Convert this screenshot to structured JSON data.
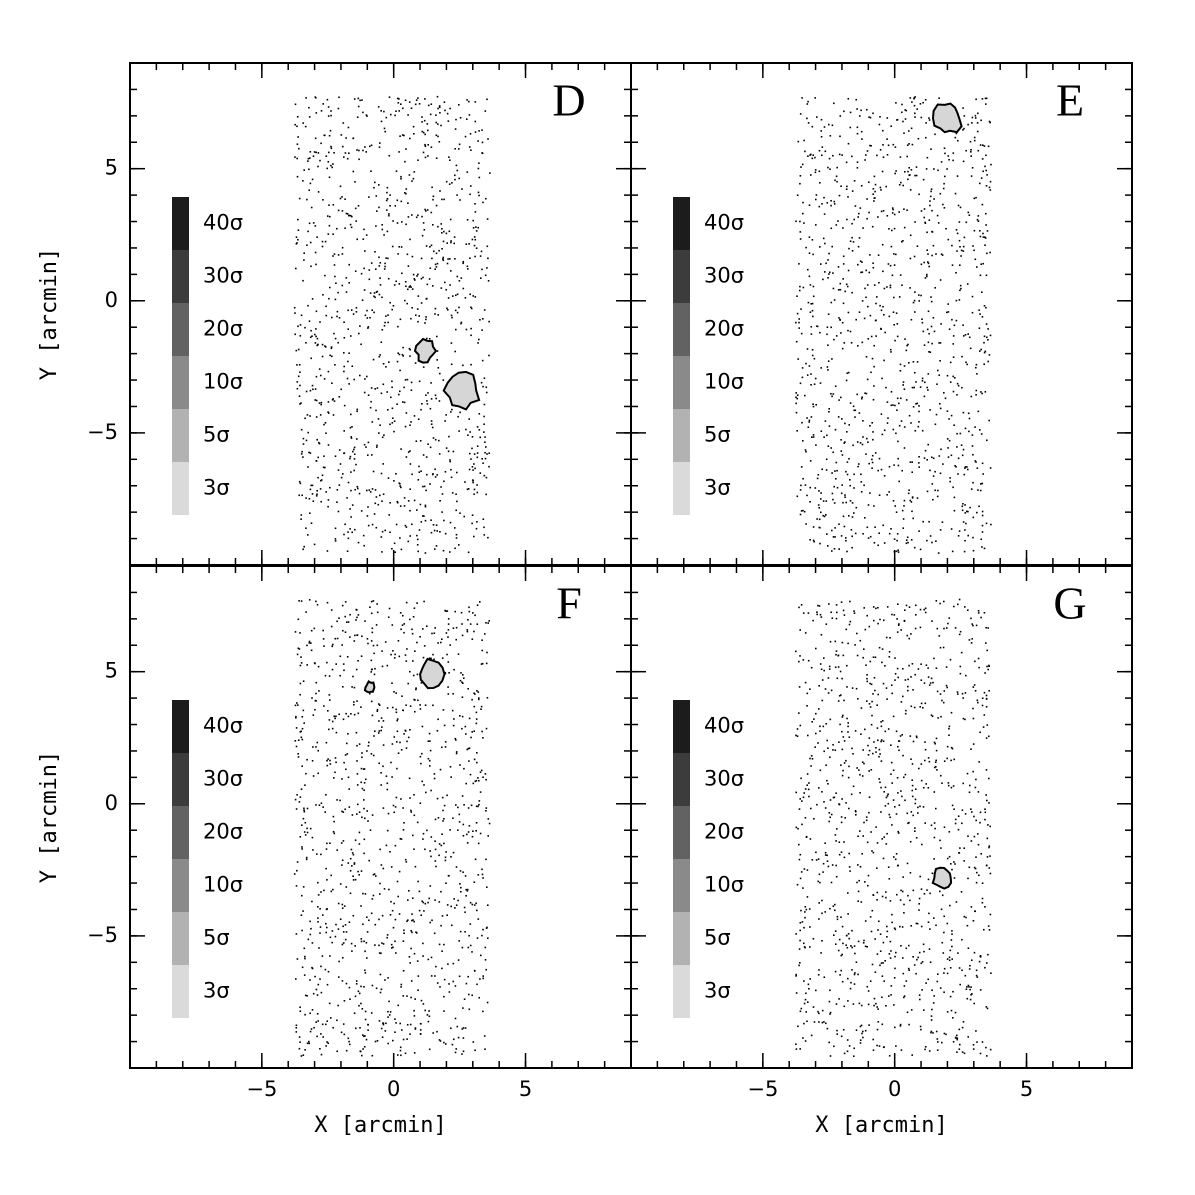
{
  "chart_data": [
    {
      "type": "contour",
      "label": "D",
      "xlim": [
        -10,
        9
      ],
      "ylim": [
        -10,
        9
      ],
      "xticks": [
        -5,
        0,
        5
      ],
      "yticks": [
        {
          "value": -5,
          "label": "−5"
        },
        0,
        5
      ],
      "x_tick_labels": false,
      "y_tick_labels": true,
      "minor_step": 1,
      "ylabel": "Y [arcmin]",
      "legend": {
        "labels": [
          "40σ",
          "30σ",
          "20σ",
          "10σ",
          "5σ",
          "3σ"
        ],
        "colors": [
          "#1c1c1c",
          "#3c3c3c",
          "#626262",
          "#8a8a8a",
          "#b2b2b2",
          "#dadada"
        ]
      },
      "contours": {
        "x": [
          1.2,
          2.6
        ],
        "y": [
          -1.9,
          -3.4
        ],
        "size": [
          0.35,
          0.6
        ]
      },
      "contour_fill": "#d6d6d6"
    },
    {
      "type": "contour",
      "label": "E",
      "xlim": [
        -10,
        9
      ],
      "ylim": [
        -10,
        9
      ],
      "xticks": [
        -5,
        0,
        5
      ],
      "yticks": [
        -5,
        0,
        5
      ],
      "x_tick_labels": false,
      "y_tick_labels": false,
      "minor_step": 1,
      "legend": {
        "labels": [
          "40σ",
          "30σ",
          "20σ",
          "10σ",
          "5σ",
          "3σ"
        ],
        "colors": [
          "#1c1c1c",
          "#3c3c3c",
          "#626262",
          "#8a8a8a",
          "#b2b2b2",
          "#dadada"
        ]
      },
      "contours": {
        "x": [
          2.0
        ],
        "y": [
          6.9
        ],
        "size": [
          0.5
        ]
      },
      "contour_fill": "#d6d6d6"
    },
    {
      "type": "contour",
      "label": "F",
      "xlim": [
        -10,
        9
      ],
      "ylim": [
        -10,
        9
      ],
      "xticks": [
        {
          "value": -5,
          "label": "−5"
        },
        0,
        5
      ],
      "yticks": [
        {
          "value": -5,
          "label": "−5"
        },
        0,
        5
      ],
      "x_tick_labels": true,
      "y_tick_labels": true,
      "minor_step": 1,
      "xlabel": "X [arcmin]",
      "ylabel": "Y [arcmin]",
      "legend": {
        "labels": [
          "40σ",
          "30σ",
          "20σ",
          "10σ",
          "5σ",
          "3σ"
        ],
        "colors": [
          "#1c1c1c",
          "#3c3c3c",
          "#626262",
          "#8a8a8a",
          "#b2b2b2",
          "#dadada"
        ]
      },
      "contours": {
        "x": [
          1.4,
          -0.9
        ],
        "y": [
          4.9,
          4.4
        ],
        "size": [
          0.45,
          0.18
        ]
      },
      "contour_fill": "#d6d6d6"
    },
    {
      "type": "contour",
      "label": "G",
      "xlim": [
        -10,
        9
      ],
      "ylim": [
        -10,
        9
      ],
      "xticks": [
        {
          "value": -5,
          "label": "−5"
        },
        0,
        5
      ],
      "yticks": [
        -5,
        0,
        5
      ],
      "x_tick_labels": true,
      "y_tick_labels": false,
      "minor_step": 1,
      "xlabel": "X [arcmin]",
      "legend": {
        "labels": [
          "40σ",
          "30σ",
          "20σ",
          "10σ",
          "5σ",
          "3σ"
        ],
        "colors": [
          "#1c1c1c",
          "#3c3c3c",
          "#626262",
          "#8a8a8a",
          "#b2b2b2",
          "#dadada"
        ]
      },
      "contours": {
        "x": [
          1.8
        ],
        "y": [
          -2.8
        ],
        "size": [
          0.35
        ]
      },
      "contour_fill": "#d6d6d6"
    }
  ]
}
